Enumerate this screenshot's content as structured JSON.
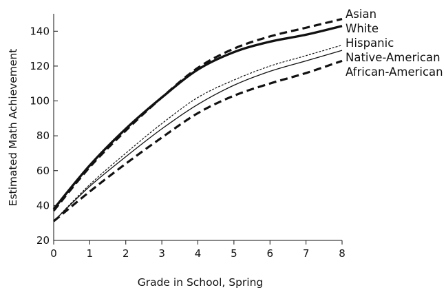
{
  "chart_data": {
    "type": "line",
    "xlabel": "Grade in School, Spring",
    "ylabel": "Estimated Math Achievement",
    "xlim": [
      0,
      8
    ],
    "ylim": [
      20,
      150
    ],
    "xticks": [
      0,
      1,
      2,
      3,
      4,
      5,
      6,
      7,
      8
    ],
    "yticks": [
      20,
      40,
      60,
      80,
      100,
      120,
      140
    ],
    "grid": false,
    "legend_placement": "right, labels at line ends",
    "x": [
      0,
      1,
      2,
      3,
      4,
      5,
      6,
      7,
      8
    ],
    "series": [
      {
        "name": "Asian",
        "style": "dashed-thick",
        "values": [
          37,
          62,
          83,
          102,
          119,
          130,
          137,
          142,
          147
        ]
      },
      {
        "name": "White",
        "style": "solid-thick",
        "values": [
          38,
          63,
          84,
          102,
          118,
          128,
          134,
          138,
          143
        ]
      },
      {
        "name": "Hispanic",
        "style": "dotted-thin",
        "values": [
          31,
          52,
          70,
          87,
          102,
          112,
          120,
          126,
          132
        ]
      },
      {
        "name": "Native-American",
        "style": "solid-thin",
        "values": [
          31,
          51,
          68,
          84,
          98,
          109,
          117,
          123,
          129
        ]
      },
      {
        "name": "African-American",
        "style": "dashed-thick",
        "values": [
          31,
          48,
          64,
          79,
          93,
          103,
          110,
          116,
          123
        ]
      }
    ]
  }
}
